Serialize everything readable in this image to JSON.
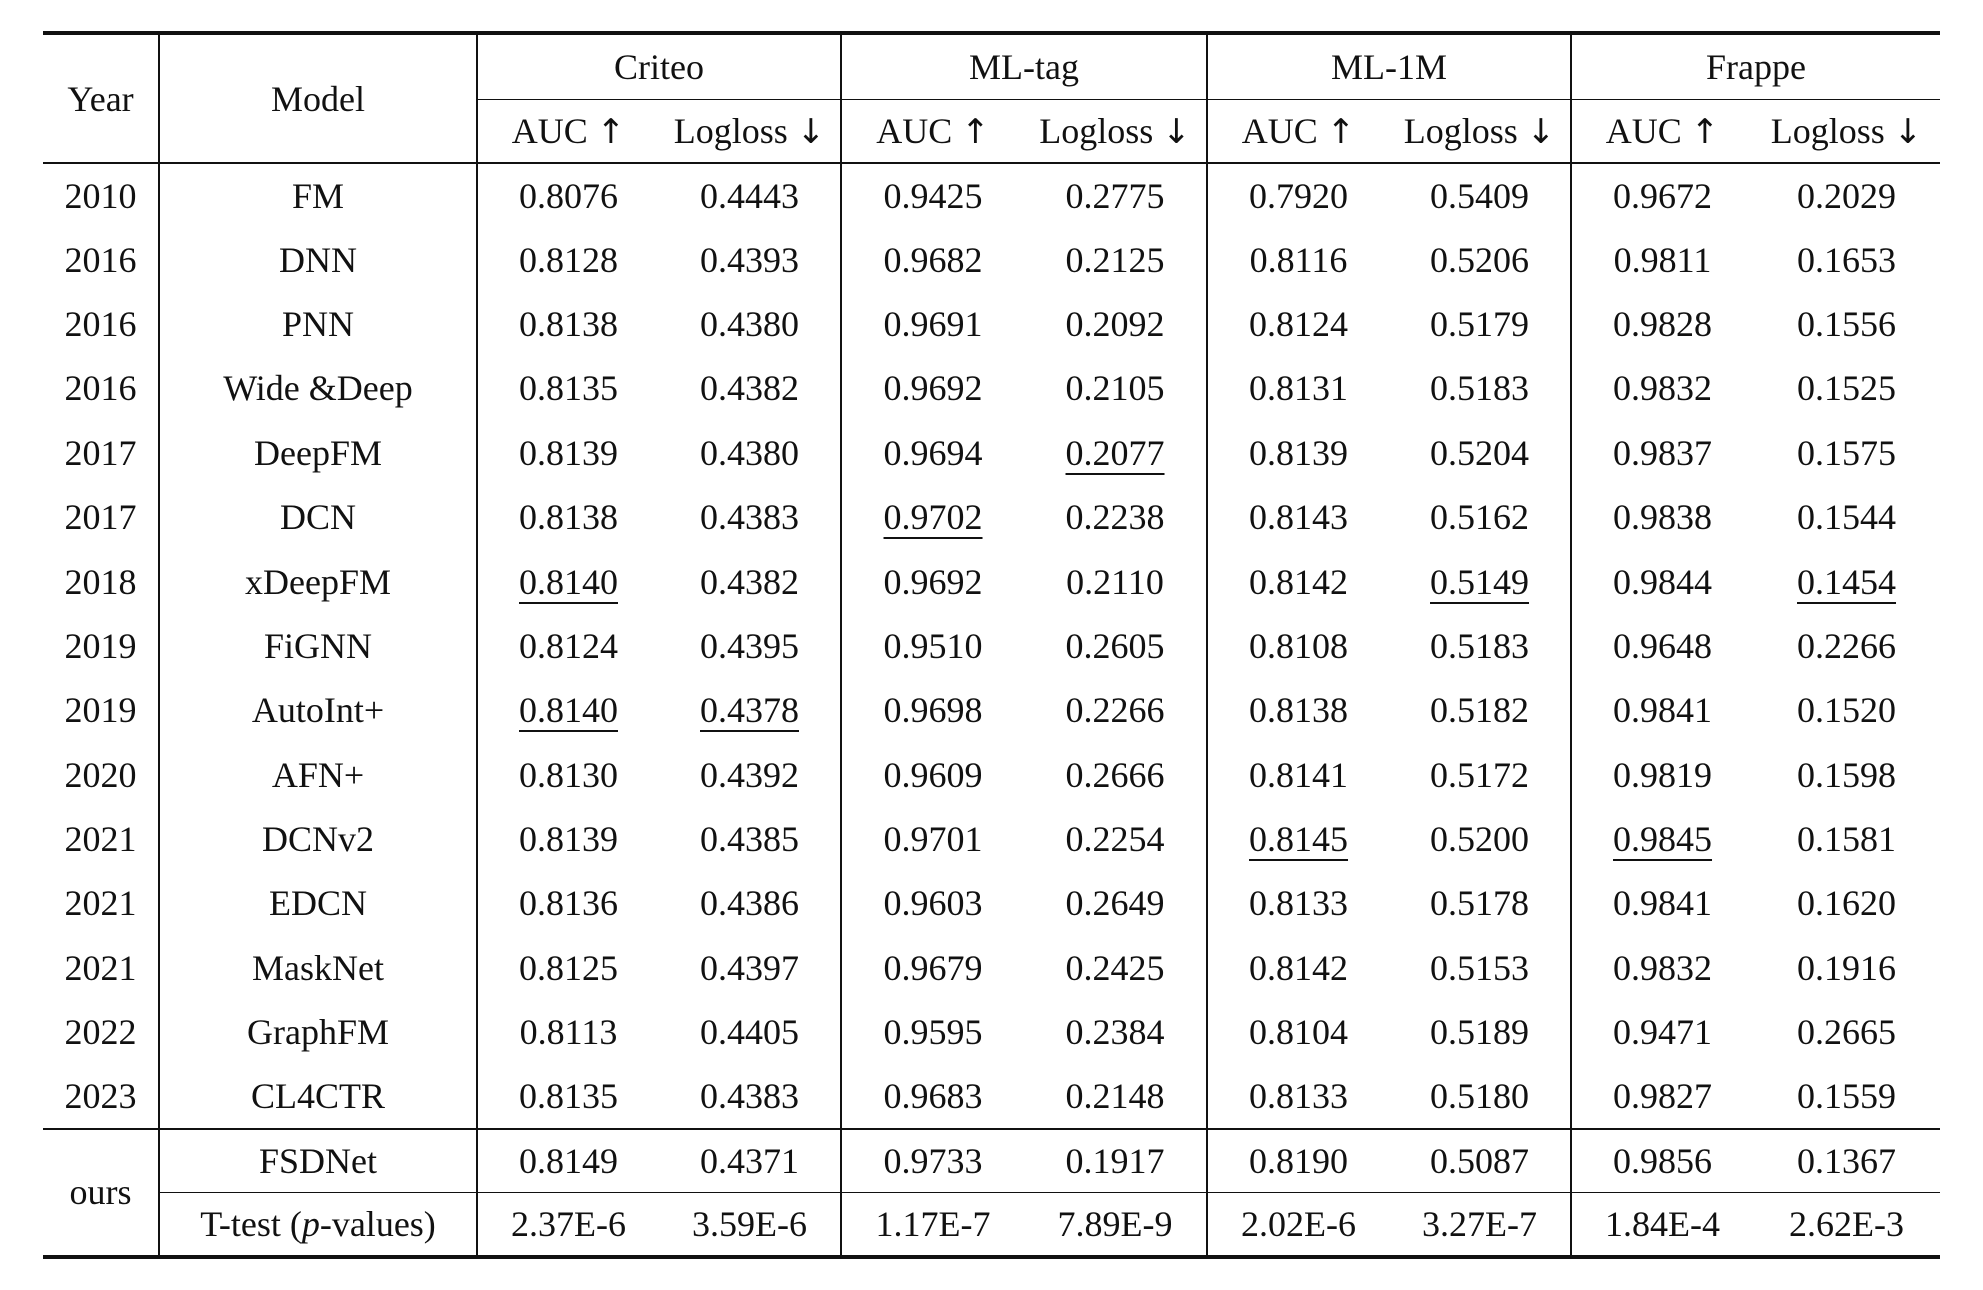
{
  "header": {
    "year": "Year",
    "model": "Model",
    "datasets": [
      "Criteo",
      "ML-tag",
      "ML-1M",
      "Frappe"
    ],
    "auc": "AUC",
    "logloss": "Logloss",
    "up_arrow": "↑",
    "down_arrow": "↓"
  },
  "rows": [
    {
      "year": "2010",
      "model": "FM",
      "values": [
        "0.8076",
        "0.4443",
        "0.9425",
        "0.2775",
        "0.7920",
        "0.5409",
        "0.9672",
        "0.2029"
      ],
      "underlined": []
    },
    {
      "year": "2016",
      "model": "DNN",
      "values": [
        "0.8128",
        "0.4393",
        "0.9682",
        "0.2125",
        "0.8116",
        "0.5206",
        "0.9811",
        "0.1653"
      ],
      "underlined": []
    },
    {
      "year": "2016",
      "model": "PNN",
      "values": [
        "0.8138",
        "0.4380",
        "0.9691",
        "0.2092",
        "0.8124",
        "0.5179",
        "0.9828",
        "0.1556"
      ],
      "underlined": []
    },
    {
      "year": "2016",
      "model": "Wide &Deep",
      "values": [
        "0.8135",
        "0.4382",
        "0.9692",
        "0.2105",
        "0.8131",
        "0.5183",
        "0.9832",
        "0.1525"
      ],
      "underlined": []
    },
    {
      "year": "2017",
      "model": "DeepFM",
      "values": [
        "0.8139",
        "0.4380",
        "0.9694",
        "0.2077",
        "0.8139",
        "0.5204",
        "0.9837",
        "0.1575"
      ],
      "underlined": [
        3
      ]
    },
    {
      "year": "2017",
      "model": "DCN",
      "values": [
        "0.8138",
        "0.4383",
        "0.9702",
        "0.2238",
        "0.8143",
        "0.5162",
        "0.9838",
        "0.1544"
      ],
      "underlined": [
        2
      ]
    },
    {
      "year": "2018",
      "model": "xDeepFM",
      "values": [
        "0.8140",
        "0.4382",
        "0.9692",
        "0.2110",
        "0.8142",
        "0.5149",
        "0.9844",
        "0.1454"
      ],
      "underlined": [
        0,
        5,
        7
      ]
    },
    {
      "year": "2019",
      "model": "FiGNN",
      "values": [
        "0.8124",
        "0.4395",
        "0.9510",
        "0.2605",
        "0.8108",
        "0.5183",
        "0.9648",
        "0.2266"
      ],
      "underlined": []
    },
    {
      "year": "2019",
      "model": "AutoInt+",
      "values": [
        "0.8140",
        "0.4378",
        "0.9698",
        "0.2266",
        "0.8138",
        "0.5182",
        "0.9841",
        "0.1520"
      ],
      "underlined": [
        0,
        1
      ]
    },
    {
      "year": "2020",
      "model": "AFN+",
      "values": [
        "0.8130",
        "0.4392",
        "0.9609",
        "0.2666",
        "0.8141",
        "0.5172",
        "0.9819",
        "0.1598"
      ],
      "underlined": []
    },
    {
      "year": "2021",
      "model": "DCNv2",
      "values": [
        "0.8139",
        "0.4385",
        "0.9701",
        "0.2254",
        "0.8145",
        "0.5200",
        "0.9845",
        "0.1581"
      ],
      "underlined": [
        4,
        6
      ]
    },
    {
      "year": "2021",
      "model": "EDCN",
      "values": [
        "0.8136",
        "0.4386",
        "0.9603",
        "0.2649",
        "0.8133",
        "0.5178",
        "0.9841",
        "0.1620"
      ],
      "underlined": []
    },
    {
      "year": "2021",
      "model": "MaskNet",
      "values": [
        "0.8125",
        "0.4397",
        "0.9679",
        "0.2425",
        "0.8142",
        "0.5153",
        "0.9832",
        "0.1916"
      ],
      "underlined": []
    },
    {
      "year": "2022",
      "model": "GraphFM",
      "values": [
        "0.8113",
        "0.4405",
        "0.9595",
        "0.2384",
        "0.8104",
        "0.5189",
        "0.9471",
        "0.2665"
      ],
      "underlined": []
    },
    {
      "year": "2023",
      "model": "CL4CTR",
      "values": [
        "0.8135",
        "0.4383",
        "0.9683",
        "0.2148",
        "0.8133",
        "0.5180",
        "0.9827",
        "0.1559"
      ],
      "underlined": []
    }
  ],
  "ours": {
    "label": "ours",
    "model": "FSDNet",
    "values": [
      "0.8149",
      "0.4371",
      "0.9733",
      "0.1917",
      "0.8190",
      "0.5087",
      "0.9856",
      "0.1367"
    ],
    "ttest_prefix": "T-test (",
    "ttest_p": "p",
    "ttest_suffix": "-values)",
    "ttest_values": [
      "2.37E-6",
      "3.59E-6",
      "1.17E-7",
      "7.89E-9",
      "2.02E-6",
      "3.27E-7",
      "1.84E-4",
      "2.62E-3"
    ]
  }
}
